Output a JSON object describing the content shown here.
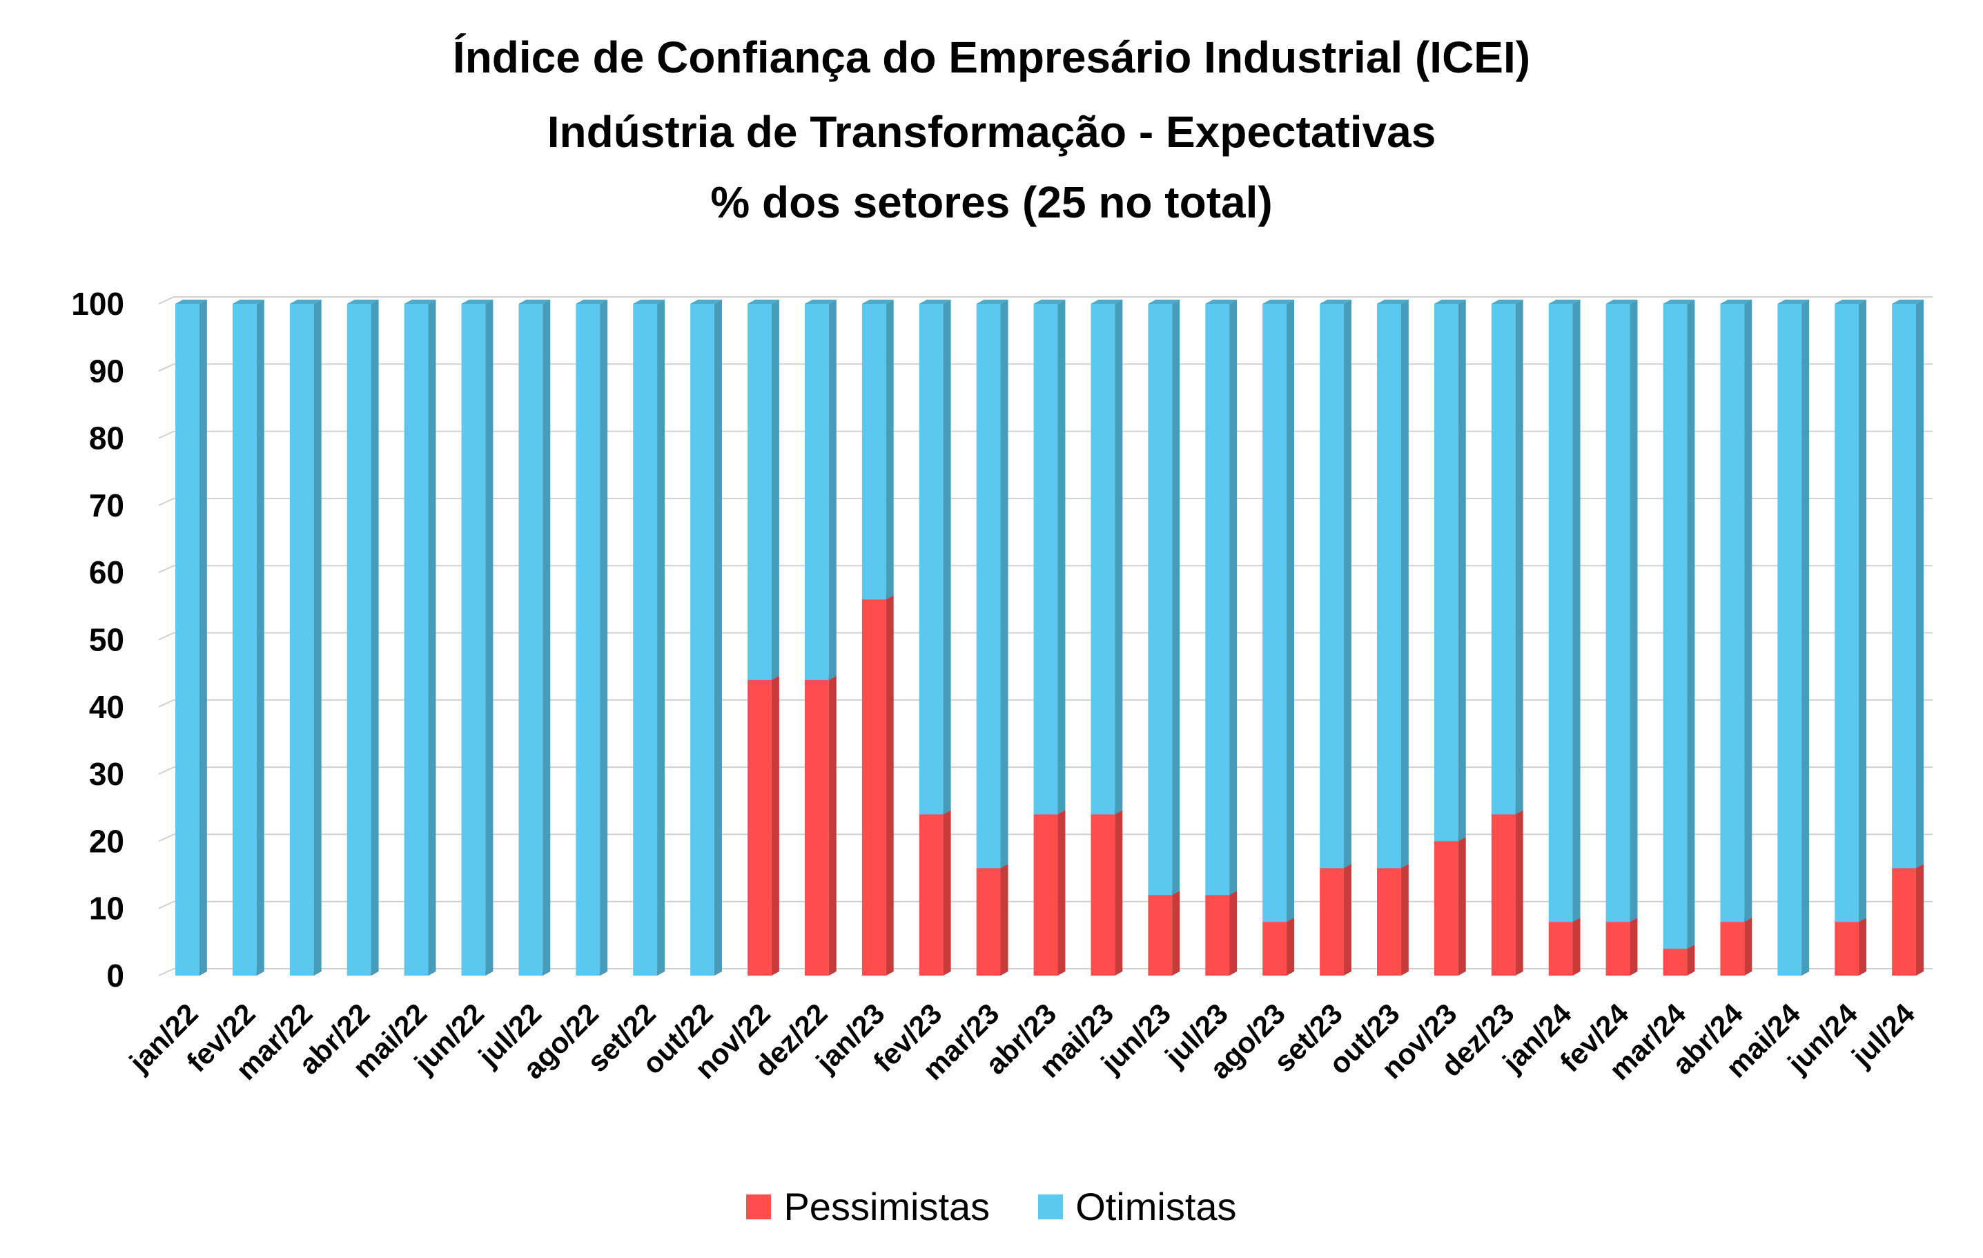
{
  "chart_data": {
    "type": "bar",
    "stacked": true,
    "title": "Índice de Confiança do Empresário Industrial (ICEI)",
    "subtitle": [
      "Indústria de Transformação - Expectativas",
      "% dos setores (25 no total)"
    ],
    "xlabel": "",
    "ylabel": "",
    "ylim": [
      0,
      100
    ],
    "yticks": [
      0,
      10,
      20,
      30,
      40,
      50,
      60,
      70,
      80,
      90,
      100
    ],
    "grid": true,
    "legend_position": "bottom",
    "categories": [
      "jan/22",
      "fev/22",
      "mar/22",
      "abr/22",
      "mai/22",
      "jun/22",
      "jul/22",
      "ago/22",
      "set/22",
      "out/22",
      "nov/22",
      "dez/22",
      "jan/23",
      "fev/23",
      "mar/23",
      "abr/23",
      "mai/23",
      "jun/23",
      "jul/23",
      "ago/23",
      "set/23",
      "out/23",
      "nov/23",
      "dez/23",
      "jan/24",
      "fev/24",
      "mar/24",
      "abr/24",
      "mai/24",
      "jun/24",
      "jul/24"
    ],
    "series": [
      {
        "name": "Pessimistas",
        "color": "#ff4c4c",
        "values": [
          0,
          0,
          0,
          0,
          0,
          0,
          0,
          0,
          0,
          0,
          44,
          44,
          56,
          24,
          16,
          24,
          24,
          12,
          12,
          8,
          16,
          16,
          20,
          24,
          8,
          8,
          4,
          8,
          0,
          8,
          16
        ]
      },
      {
        "name": "Otimistas",
        "color": "#5bc8ef",
        "values": [
          100,
          100,
          100,
          100,
          100,
          100,
          100,
          100,
          100,
          100,
          56,
          56,
          44,
          76,
          84,
          76,
          76,
          88,
          88,
          92,
          84,
          84,
          80,
          76,
          92,
          92,
          96,
          92,
          100,
          92,
          84
        ]
      }
    ]
  }
}
